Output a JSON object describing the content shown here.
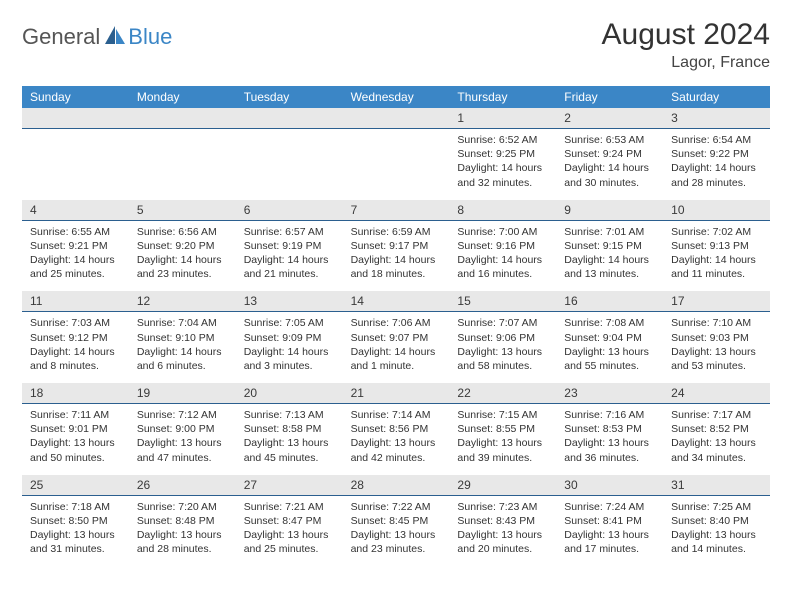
{
  "brand": {
    "part1": "General",
    "part2": "Blue"
  },
  "title": "August 2024",
  "location": "Lagor, France",
  "colors": {
    "header_bg": "#3b86c6",
    "header_text": "#ffffff",
    "daynum_bg": "#e8e8e8",
    "divider": "#2b5f8f",
    "text": "#333333"
  },
  "days_of_week": [
    "Sunday",
    "Monday",
    "Tuesday",
    "Wednesday",
    "Thursday",
    "Friday",
    "Saturday"
  ],
  "weeks": [
    {
      "numbers": [
        "",
        "",
        "",
        "",
        "1",
        "2",
        "3"
      ],
      "cells": [
        null,
        null,
        null,
        null,
        {
          "sunrise": "Sunrise: 6:52 AM",
          "sunset": "Sunset: 9:25 PM",
          "day1": "Daylight: 14 hours",
          "day2": "and 32 minutes."
        },
        {
          "sunrise": "Sunrise: 6:53 AM",
          "sunset": "Sunset: 9:24 PM",
          "day1": "Daylight: 14 hours",
          "day2": "and 30 minutes."
        },
        {
          "sunrise": "Sunrise: 6:54 AM",
          "sunset": "Sunset: 9:22 PM",
          "day1": "Daylight: 14 hours",
          "day2": "and 28 minutes."
        }
      ]
    },
    {
      "numbers": [
        "4",
        "5",
        "6",
        "7",
        "8",
        "9",
        "10"
      ],
      "cells": [
        {
          "sunrise": "Sunrise: 6:55 AM",
          "sunset": "Sunset: 9:21 PM",
          "day1": "Daylight: 14 hours",
          "day2": "and 25 minutes."
        },
        {
          "sunrise": "Sunrise: 6:56 AM",
          "sunset": "Sunset: 9:20 PM",
          "day1": "Daylight: 14 hours",
          "day2": "and 23 minutes."
        },
        {
          "sunrise": "Sunrise: 6:57 AM",
          "sunset": "Sunset: 9:19 PM",
          "day1": "Daylight: 14 hours",
          "day2": "and 21 minutes."
        },
        {
          "sunrise": "Sunrise: 6:59 AM",
          "sunset": "Sunset: 9:17 PM",
          "day1": "Daylight: 14 hours",
          "day2": "and 18 minutes."
        },
        {
          "sunrise": "Sunrise: 7:00 AM",
          "sunset": "Sunset: 9:16 PM",
          "day1": "Daylight: 14 hours",
          "day2": "and 16 minutes."
        },
        {
          "sunrise": "Sunrise: 7:01 AM",
          "sunset": "Sunset: 9:15 PM",
          "day1": "Daylight: 14 hours",
          "day2": "and 13 minutes."
        },
        {
          "sunrise": "Sunrise: 7:02 AM",
          "sunset": "Sunset: 9:13 PM",
          "day1": "Daylight: 14 hours",
          "day2": "and 11 minutes."
        }
      ]
    },
    {
      "numbers": [
        "11",
        "12",
        "13",
        "14",
        "15",
        "16",
        "17"
      ],
      "cells": [
        {
          "sunrise": "Sunrise: 7:03 AM",
          "sunset": "Sunset: 9:12 PM",
          "day1": "Daylight: 14 hours",
          "day2": "and 8 minutes."
        },
        {
          "sunrise": "Sunrise: 7:04 AM",
          "sunset": "Sunset: 9:10 PM",
          "day1": "Daylight: 14 hours",
          "day2": "and 6 minutes."
        },
        {
          "sunrise": "Sunrise: 7:05 AM",
          "sunset": "Sunset: 9:09 PM",
          "day1": "Daylight: 14 hours",
          "day2": "and 3 minutes."
        },
        {
          "sunrise": "Sunrise: 7:06 AM",
          "sunset": "Sunset: 9:07 PM",
          "day1": "Daylight: 14 hours",
          "day2": "and 1 minute."
        },
        {
          "sunrise": "Sunrise: 7:07 AM",
          "sunset": "Sunset: 9:06 PM",
          "day1": "Daylight: 13 hours",
          "day2": "and 58 minutes."
        },
        {
          "sunrise": "Sunrise: 7:08 AM",
          "sunset": "Sunset: 9:04 PM",
          "day1": "Daylight: 13 hours",
          "day2": "and 55 minutes."
        },
        {
          "sunrise": "Sunrise: 7:10 AM",
          "sunset": "Sunset: 9:03 PM",
          "day1": "Daylight: 13 hours",
          "day2": "and 53 minutes."
        }
      ]
    },
    {
      "numbers": [
        "18",
        "19",
        "20",
        "21",
        "22",
        "23",
        "24"
      ],
      "cells": [
        {
          "sunrise": "Sunrise: 7:11 AM",
          "sunset": "Sunset: 9:01 PM",
          "day1": "Daylight: 13 hours",
          "day2": "and 50 minutes."
        },
        {
          "sunrise": "Sunrise: 7:12 AM",
          "sunset": "Sunset: 9:00 PM",
          "day1": "Daylight: 13 hours",
          "day2": "and 47 minutes."
        },
        {
          "sunrise": "Sunrise: 7:13 AM",
          "sunset": "Sunset: 8:58 PM",
          "day1": "Daylight: 13 hours",
          "day2": "and 45 minutes."
        },
        {
          "sunrise": "Sunrise: 7:14 AM",
          "sunset": "Sunset: 8:56 PM",
          "day1": "Daylight: 13 hours",
          "day2": "and 42 minutes."
        },
        {
          "sunrise": "Sunrise: 7:15 AM",
          "sunset": "Sunset: 8:55 PM",
          "day1": "Daylight: 13 hours",
          "day2": "and 39 minutes."
        },
        {
          "sunrise": "Sunrise: 7:16 AM",
          "sunset": "Sunset: 8:53 PM",
          "day1": "Daylight: 13 hours",
          "day2": "and 36 minutes."
        },
        {
          "sunrise": "Sunrise: 7:17 AM",
          "sunset": "Sunset: 8:52 PM",
          "day1": "Daylight: 13 hours",
          "day2": "and 34 minutes."
        }
      ]
    },
    {
      "numbers": [
        "25",
        "26",
        "27",
        "28",
        "29",
        "30",
        "31"
      ],
      "cells": [
        {
          "sunrise": "Sunrise: 7:18 AM",
          "sunset": "Sunset: 8:50 PM",
          "day1": "Daylight: 13 hours",
          "day2": "and 31 minutes."
        },
        {
          "sunrise": "Sunrise: 7:20 AM",
          "sunset": "Sunset: 8:48 PM",
          "day1": "Daylight: 13 hours",
          "day2": "and 28 minutes."
        },
        {
          "sunrise": "Sunrise: 7:21 AM",
          "sunset": "Sunset: 8:47 PM",
          "day1": "Daylight: 13 hours",
          "day2": "and 25 minutes."
        },
        {
          "sunrise": "Sunrise: 7:22 AM",
          "sunset": "Sunset: 8:45 PM",
          "day1": "Daylight: 13 hours",
          "day2": "and 23 minutes."
        },
        {
          "sunrise": "Sunrise: 7:23 AM",
          "sunset": "Sunset: 8:43 PM",
          "day1": "Daylight: 13 hours",
          "day2": "and 20 minutes."
        },
        {
          "sunrise": "Sunrise: 7:24 AM",
          "sunset": "Sunset: 8:41 PM",
          "day1": "Daylight: 13 hours",
          "day2": "and 17 minutes."
        },
        {
          "sunrise": "Sunrise: 7:25 AM",
          "sunset": "Sunset: 8:40 PM",
          "day1": "Daylight: 13 hours",
          "day2": "and 14 minutes."
        }
      ]
    }
  ]
}
